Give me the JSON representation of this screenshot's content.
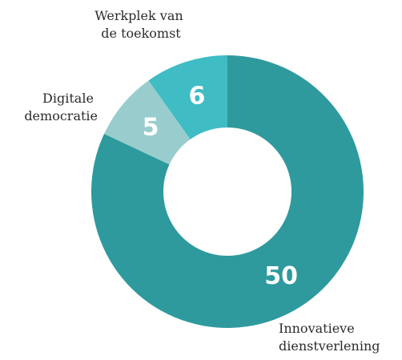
{
  "chart_data": {
    "type": "pie",
    "donut": true,
    "slices": [
      {
        "label": "Innovatieve dienstverlening",
        "label_lines": [
          "Innovatieve",
          "dienstverlening"
        ],
        "value": 50,
        "color": "#2e9a9e"
      },
      {
        "label": "Digitale democratie",
        "label_lines": [
          "Digitale",
          "democratie"
        ],
        "value": 5,
        "color": "#99cdcd"
      },
      {
        "label": "Werkplek van de toekomst",
        "label_lines": [
          "Werkplek van",
          "de toekomst"
        ],
        "value": 6,
        "color": "#3fbcc4"
      }
    ]
  }
}
